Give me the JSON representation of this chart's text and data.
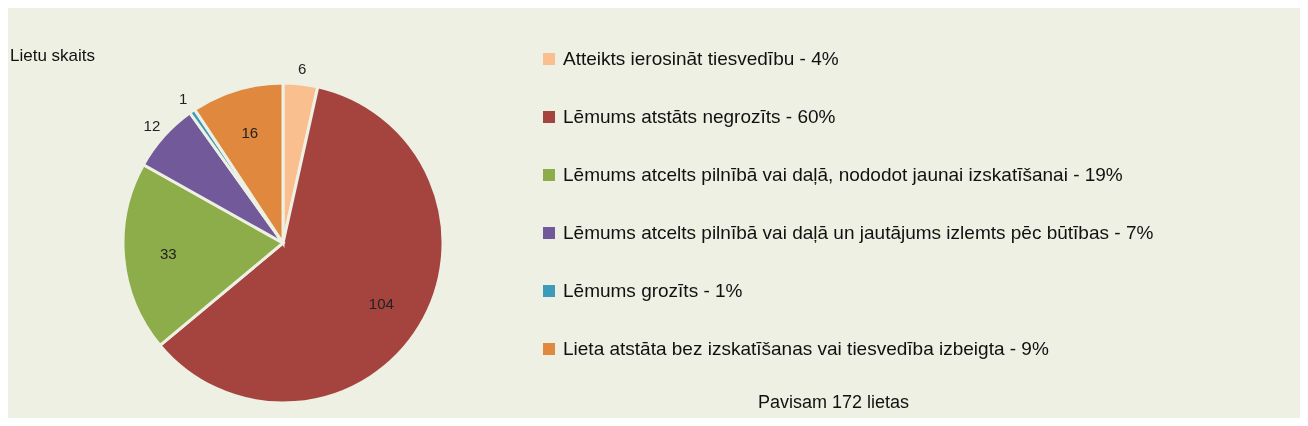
{
  "chart_data": {
    "type": "pie",
    "title": "Lietu skaits",
    "categories": [
      "Atteikts ierosināt tiesvedību - 4%",
      "Lēmums atstāts negrozīts - 60%",
      "Lēmums atcelts pilnībā vai daļā, nododot jaunai izskatīšanai - 19%",
      "Lēmums atcelts pilnībā vai daļā un jautājums izlemts pēc būtības - 7%",
      "Lēmums grozīts - 1%",
      "Lieta atstāta bez izskatīšanas vai tiesvedība izbeigta - 9%"
    ],
    "values": [
      6,
      104,
      33,
      12,
      1,
      16
    ],
    "colors": [
      "#fabf8f",
      "#a5443f",
      "#8dad4a",
      "#72599a",
      "#3c9bb8",
      "#e0883d"
    ],
    "data_labels": true,
    "legend": "right",
    "annotations": [
      "Pavisam 172 lietas"
    ]
  }
}
